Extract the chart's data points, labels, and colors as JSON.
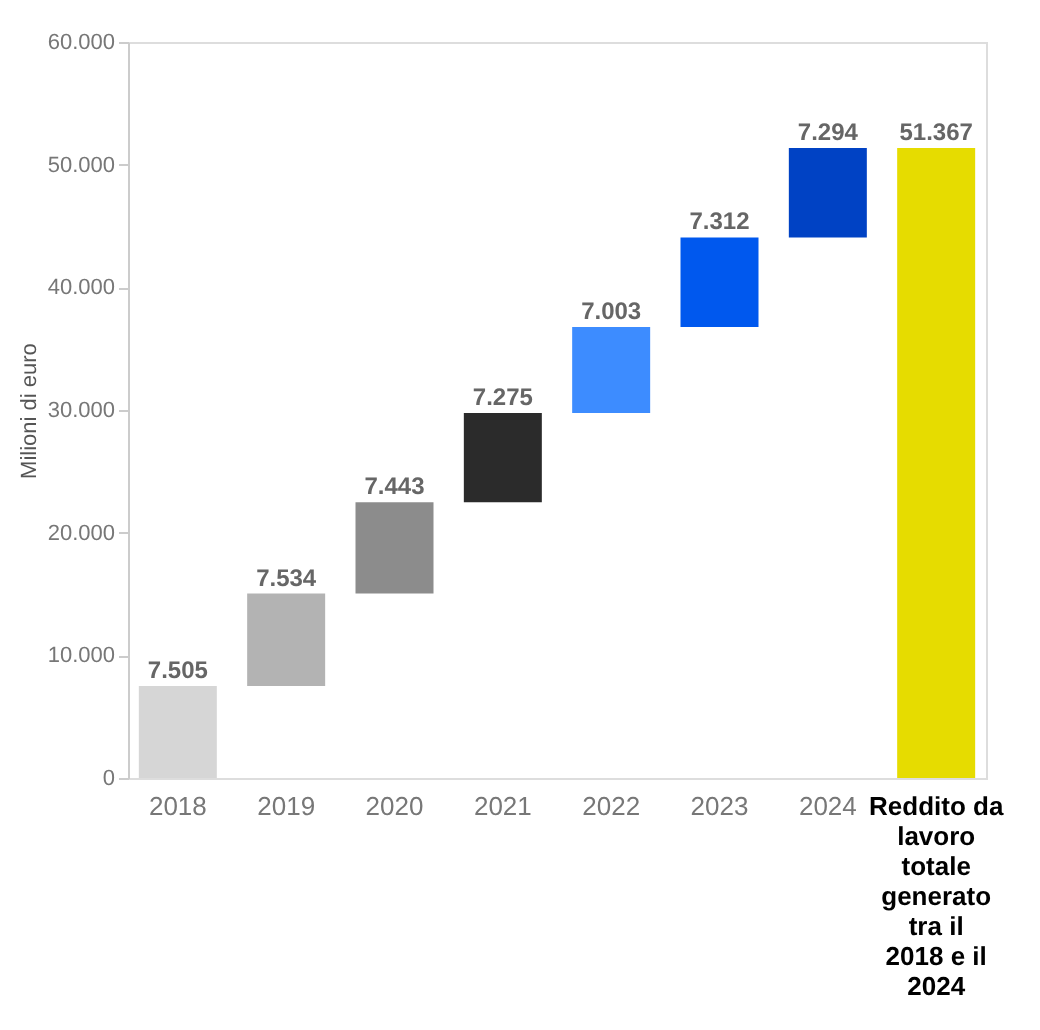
{
  "chart_data": {
    "type": "bar",
    "ylabel": "Milioni di euro",
    "categories": [
      "2018",
      "2019",
      "2020",
      "2021",
      "2022",
      "2023",
      "2024",
      "Reddito da lavoro totale generato tra il 2018 e il 2024"
    ],
    "values": [
      7505,
      7534,
      7443,
      7275,
      7003,
      7312,
      7294,
      51367
    ],
    "base": [
      0,
      7505,
      15039,
      22482,
      29757,
      36760,
      44072,
      0
    ],
    "colors": [
      "#d6d6d6",
      "#b3b3b3",
      "#8c8c8c",
      "#2b2b2b",
      "#3d8cff",
      "#0058ee",
      "#0042c4",
      "#e6dc00"
    ],
    "value_labels": [
      "7.505",
      "7.534",
      "7.443",
      "7.275",
      "7.003",
      "7.312",
      "7.294",
      "51.367"
    ],
    "ylim": [
      0,
      60000
    ],
    "yticks": [
      0,
      {
        "value": 10000,
        "label": "10.000"
      },
      {
        "value": 20000,
        "label": "20.000"
      },
      {
        "value": 30000,
        "label": "30.000"
      },
      {
        "value": 40000,
        "label": "40.000"
      },
      {
        "value": 50000,
        "label": "50.000"
      },
      {
        "value": 60000,
        "label": "60.000"
      }
    ],
    "grid": false,
    "legend": false
  }
}
